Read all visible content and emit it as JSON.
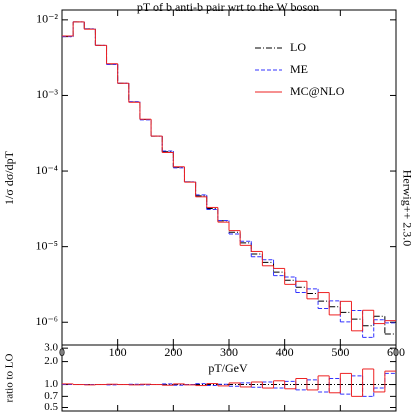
{
  "chart_data": [
    {
      "type": "histogram",
      "title": "pT of b anti-b pair wrt to the W boson",
      "x_label": "pT/GeV",
      "y_label": "1/σ dσ/dpT",
      "annotation": "Herwig++ 2.3.0",
      "log_y": true,
      "legend": "upper right",
      "bins": [
        0,
        20,
        40,
        60,
        80,
        100,
        120,
        140,
        160,
        180,
        200,
        220,
        240,
        260,
        280,
        300,
        320,
        340,
        360,
        380,
        400,
        420,
        440,
        460,
        480,
        500,
        520,
        540,
        560,
        580,
        600
      ],
      "xlim": [
        0,
        600
      ],
      "xticks": [
        0,
        100,
        200,
        300,
        400,
        500,
        600
      ],
      "ylim": [
        5e-07,
        0.0135
      ],
      "yticks": [
        {
          "value": 0.01,
          "label": "10⁻²"
        },
        {
          "value": 0.001,
          "label": "10⁻³"
        },
        {
          "value": 0.0001,
          "label": "10⁻⁴"
        },
        {
          "value": 1e-05,
          "label": "10⁻⁵"
        },
        {
          "value": 1e-06,
          "label": "10⁻⁶"
        }
      ],
      "series": [
        {
          "name": "LO",
          "color": "#000000",
          "dash": "6,2,1,2",
          "values": [
            0.006,
            0.0094,
            0.0076,
            0.0046,
            0.0026,
            0.00145,
            0.00082,
            0.00048,
            0.00029,
            0.00018,
            0.000112,
            7.2e-05,
            4.7e-05,
            3.2e-05,
            2.2e-05,
            1.55e-05,
            1.12e-05,
            8e-06,
            6.2e-06,
            4.6e-06,
            3.6e-06,
            2.9e-06,
            2.4e-06,
            1.9e-06,
            1.6e-06,
            1.35e-06,
            1.1e-06,
            9e-07,
            1.2e-06,
            7e-07
          ]
        },
        {
          "name": "ME",
          "color": "#3333ff",
          "dash": "4,2",
          "values": [
            0.006,
            0.0094,
            0.0076,
            0.0046,
            0.00257,
            0.00145,
            0.000828,
            0.000475,
            0.00029,
            0.000184,
            0.00011,
            7.2e-05,
            4.84e-05,
            3.1e-05,
            2.22e-05,
            1.47e-05,
            1.18e-05,
            7.36e-06,
            6.7e-06,
            4.14e-06,
            3.96e-06,
            2.47e-06,
            2.76e-06,
            1.52e-06,
            1.92e-06,
            1.01e-06,
            1.43e-06,
            6.3e-07,
            1.08e-06,
            9.8e-07
          ]
        },
        {
          "name": "MC@NLO",
          "color": "#ee2222",
          "dash": "none",
          "values": [
            0.00612,
            0.0094,
            0.00752,
            0.0046,
            0.00263,
            0.00145,
            0.000812,
            0.000485,
            0.00029,
            0.000176,
            0.000114,
            7.13e-05,
            4.56e-05,
            3.3e-05,
            2.11e-05,
            1.63e-05,
            1.04e-05,
            8.64e-06,
            5.58e-06,
            5.15e-06,
            3.17e-06,
            3.48e-06,
            2.04e-06,
            2.47e-06,
            1.25e-06,
            1.89e-06,
            7.7e-07,
            1.44e-06,
            9.6e-07,
            1.05e-06
          ]
        }
      ]
    },
    {
      "type": "histogram",
      "y_label": "ratio to LO",
      "log_y": true,
      "bins": [
        0,
        20,
        40,
        60,
        80,
        100,
        120,
        140,
        160,
        180,
        200,
        220,
        240,
        260,
        280,
        300,
        320,
        340,
        360,
        380,
        400,
        420,
        440,
        460,
        480,
        500,
        520,
        540,
        560,
        580,
        600
      ],
      "xlim": [
        0,
        600
      ],
      "ylim": [
        0.45,
        3.3
      ],
      "yticks": [
        {
          "value": 3,
          "label": "3.0"
        },
        {
          "value": 2,
          "label": "2.0"
        },
        {
          "value": 1,
          "label": "1.0"
        },
        0.7,
        0.5
      ],
      "series": [
        {
          "color": "#3333ff",
          "dash": "4,2",
          "values": [
            1.0,
            1.0,
            1.0,
            1.0,
            0.99,
            1.0,
            1.01,
            0.99,
            1.0,
            1.02,
            0.98,
            1.0,
            1.03,
            0.97,
            1.01,
            0.95,
            1.05,
            0.92,
            1.08,
            0.9,
            1.1,
            0.85,
            1.15,
            0.8,
            1.2,
            0.75,
            1.3,
            0.7,
            0.9,
            1.4
          ]
        },
        {
          "color": "#ee2222",
          "dash": "none",
          "values": [
            1.02,
            1.0,
            0.99,
            1.0,
            1.01,
            1.0,
            0.99,
            1.01,
            1.0,
            0.98,
            1.02,
            0.99,
            0.97,
            1.03,
            0.96,
            1.05,
            0.93,
            1.08,
            0.9,
            1.12,
            0.88,
            1.2,
            0.85,
            1.3,
            0.78,
            1.4,
            0.7,
            1.6,
            0.8,
            1.5
          ]
        }
      ]
    }
  ]
}
